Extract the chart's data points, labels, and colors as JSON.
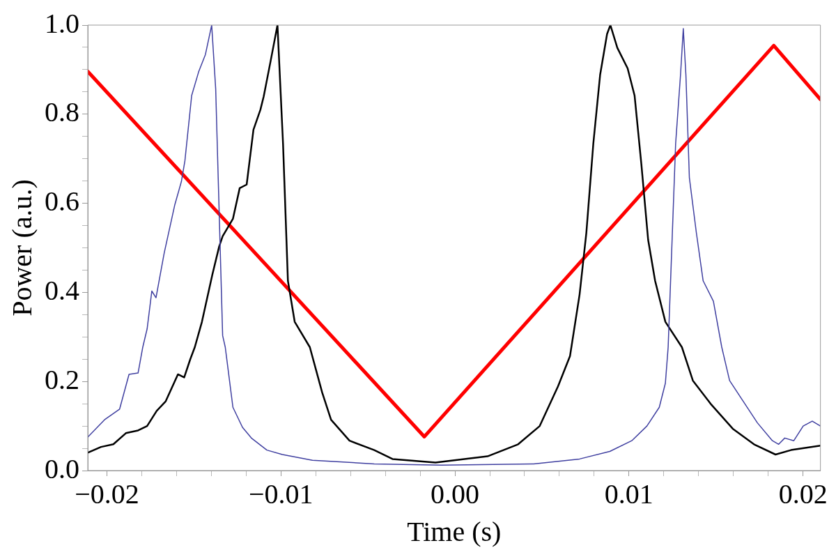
{
  "chart_data": {
    "type": "line",
    "xlabel": "Time (s)",
    "ylabel": "Power (a.u.)",
    "xlim": [
      -0.0211,
      0.021
    ],
    "ylim": [
      0,
      1
    ],
    "xticks": [
      {
        "value": -0.02,
        "label": "−0.02"
      },
      {
        "value": -0.018,
        "label": null
      },
      {
        "value": -0.016,
        "label": null
      },
      {
        "value": -0.014,
        "label": null
      },
      {
        "value": -0.012,
        "label": null
      },
      {
        "value": -0.01,
        "label": "−0.01"
      },
      {
        "value": -0.008,
        "label": null
      },
      {
        "value": -0.006,
        "label": null
      },
      {
        "value": -0.004,
        "label": null
      },
      {
        "value": -0.002,
        "label": null
      },
      {
        "value": 0,
        "label": "0.00"
      },
      {
        "value": 0.002,
        "label": null
      },
      {
        "value": 0.004,
        "label": null
      },
      {
        "value": 0.006,
        "label": null
      },
      {
        "value": 0.008,
        "label": null
      },
      {
        "value": 0.01,
        "label": "0.01"
      },
      {
        "value": 0.012,
        "label": null
      },
      {
        "value": 0.014,
        "label": null
      },
      {
        "value": 0.016,
        "label": null
      },
      {
        "value": 0.018,
        "label": null
      },
      {
        "value": 0.02,
        "label": "0.02"
      }
    ],
    "yticks": [
      {
        "value": 0,
        "label": "0.0"
      },
      {
        "value": 0.05,
        "label": null
      },
      {
        "value": 0.1,
        "label": null
      },
      {
        "value": 0.15,
        "label": null
      },
      {
        "value": 0.2,
        "label": "0.2"
      },
      {
        "value": 0.25,
        "label": null
      },
      {
        "value": 0.3,
        "label": null
      },
      {
        "value": 0.35,
        "label": null
      },
      {
        "value": 0.4,
        "label": "0.4"
      },
      {
        "value": 0.45,
        "label": null
      },
      {
        "value": 0.5,
        "label": null
      },
      {
        "value": 0.55,
        "label": null
      },
      {
        "value": 0.6,
        "label": "0.6"
      },
      {
        "value": 0.65,
        "label": null
      },
      {
        "value": 0.7,
        "label": null
      },
      {
        "value": 0.75,
        "label": null
      },
      {
        "value": 0.8,
        "label": "0.8"
      },
      {
        "value": 0.85,
        "label": null
      },
      {
        "value": 0.9,
        "label": null
      },
      {
        "value": 0.95,
        "label": null
      },
      {
        "value": 1,
        "label": "1.0"
      }
    ],
    "grid": false,
    "legend": false,
    "marker": "none",
    "line_style": "solid",
    "series": [
      {
        "color": "#3f3fa0",
        "x": [
          -0.0211,
          -0.02014,
          -0.01927,
          -0.01873,
          -0.01821,
          -0.01794,
          -0.01769,
          -0.01742,
          -0.01718,
          -0.01671,
          -0.01611,
          -0.01572,
          -0.01552,
          -0.01513,
          -0.01473,
          -0.01434,
          -0.01398,
          -0.01375,
          -0.01355,
          -0.01335,
          -0.0132,
          -0.01276,
          -0.01221,
          -0.0117,
          -0.01081,
          -0.00992,
          -0.00819,
          -0.00464,
          -0.00077,
          0.00452,
          0.00716,
          0.0089,
          0.01016,
          0.01103,
          0.01174,
          0.01209,
          0.01225,
          0.01268,
          0.01296,
          0.01312,
          0.01327,
          0.01347,
          0.01387,
          0.01426,
          0.01485,
          0.01533,
          0.01578,
          0.01647,
          0.01738,
          0.01824,
          0.0186,
          0.01895,
          0.01947,
          0.02001,
          0.02053,
          0.021
        ],
        "values": [
          0.075,
          0.114,
          0.138,
          0.216,
          0.219,
          0.277,
          0.318,
          0.403,
          0.388,
          0.488,
          0.595,
          0.649,
          0.695,
          0.842,
          0.895,
          0.934,
          1.0,
          0.857,
          0.58,
          0.303,
          0.277,
          0.142,
          0.097,
          0.073,
          0.046,
          0.036,
          0.023,
          0.015,
          0.012,
          0.015,
          0.026,
          0.043,
          0.067,
          0.1,
          0.142,
          0.196,
          0.277,
          0.734,
          0.888,
          0.992,
          0.888,
          0.657,
          0.534,
          0.426,
          0.38,
          0.277,
          0.202,
          0.161,
          0.107,
          0.067,
          0.059,
          0.073,
          0.067,
          0.1,
          0.111,
          0.1
        ]
      },
      {
        "color": "#000000",
        "x": [
          -0.0211,
          -0.02034,
          -0.01963,
          -0.01891,
          -0.01821,
          -0.01769,
          -0.01714,
          -0.01663,
          -0.01592,
          -0.01556,
          -0.01521,
          -0.01495,
          -0.01454,
          -0.01394,
          -0.01355,
          -0.01335,
          -0.01276,
          -0.01237,
          -0.01197,
          -0.01158,
          -0.01118,
          -0.01099,
          -0.01059,
          -0.0102,
          -0.00988,
          -0.0096,
          -0.00921,
          -0.00834,
          -0.00763,
          -0.00712,
          -0.00606,
          -0.00464,
          -0.00359,
          -0.00112,
          0.00187,
          0.00363,
          0.00487,
          0.00592,
          0.00661,
          0.00716,
          0.00755,
          0.00795,
          0.00834,
          0.00874,
          0.00893,
          0.00933,
          0.00992,
          0.01032,
          0.01071,
          0.0111,
          0.0115,
          0.01209,
          0.01304,
          0.01367,
          0.01473,
          0.01596,
          0.01718,
          0.01842,
          0.01931,
          0.021
        ],
        "values": [
          0.04,
          0.053,
          0.059,
          0.084,
          0.09,
          0.1,
          0.134,
          0.155,
          0.216,
          0.209,
          0.25,
          0.277,
          0.334,
          0.44,
          0.503,
          0.526,
          0.565,
          0.634,
          0.642,
          0.765,
          0.81,
          0.84,
          0.92,
          1.0,
          0.734,
          0.426,
          0.334,
          0.277,
          0.175,
          0.114,
          0.067,
          0.046,
          0.026,
          0.018,
          0.032,
          0.059,
          0.1,
          0.189,
          0.257,
          0.395,
          0.534,
          0.734,
          0.888,
          0.98,
          1.0,
          0.949,
          0.903,
          0.842,
          0.688,
          0.518,
          0.426,
          0.334,
          0.277,
          0.202,
          0.148,
          0.094,
          0.059,
          0.036,
          0.046,
          0.056
        ]
      },
      {
        "color": "#ff0000",
        "x": [
          -0.0211,
          -0.00176,
          0.01832,
          0.021
        ],
        "values": [
          0.896,
          0.076,
          0.954,
          0.833
        ]
      }
    ]
  }
}
